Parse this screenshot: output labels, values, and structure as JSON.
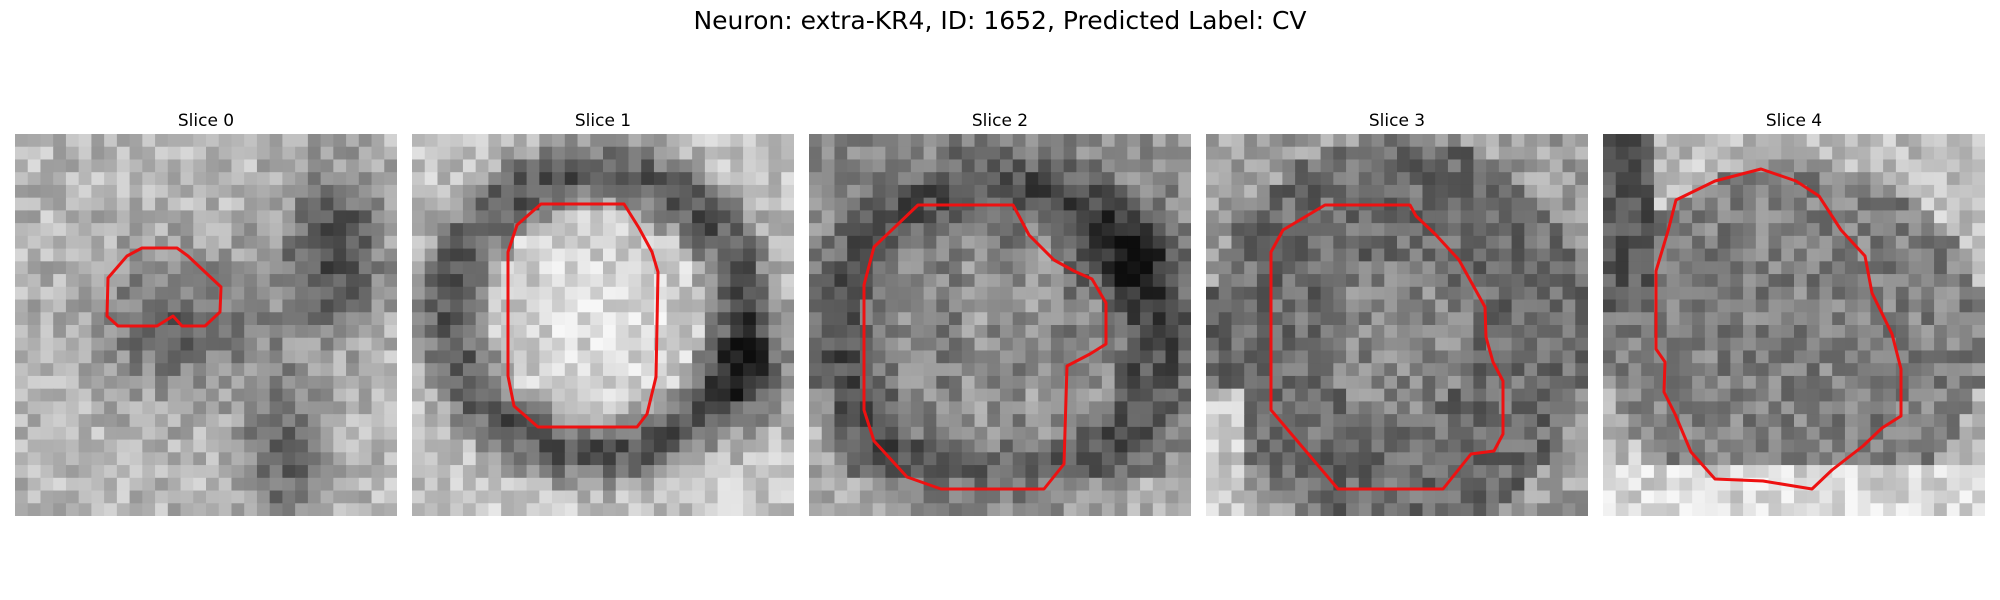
{
  "figure": {
    "title": "Neuron: extra-KR4, ID: 1652, Predicted Label: CV"
  },
  "panels": [
    {
      "title": "Slice 0",
      "seed": 11,
      "texture": "slice0"
    },
    {
      "title": "Slice 1",
      "seed": 23,
      "texture": "slice1"
    },
    {
      "title": "Slice 2",
      "seed": 37,
      "texture": "slice2"
    },
    {
      "title": "Slice 3",
      "seed": 41,
      "texture": "slice3"
    },
    {
      "title": "Slice 4",
      "seed": 53,
      "texture": "slice4"
    }
  ],
  "colors": {
    "contour": "#ee1111"
  }
}
